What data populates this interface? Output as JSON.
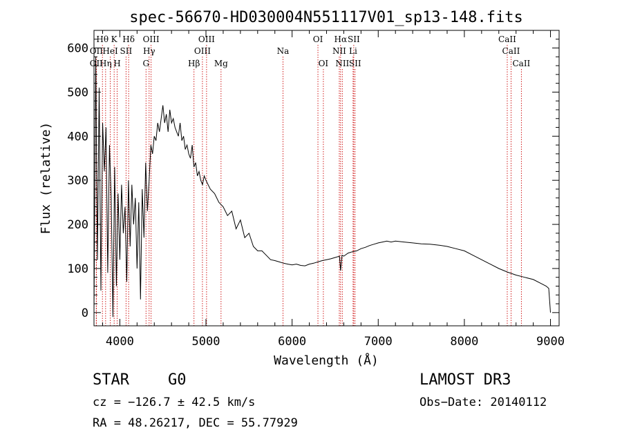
{
  "chart_data": {
    "type": "line",
    "title": "spec-56670-HD030004N551117V01_sp13-148.fits",
    "xlabel": "Wavelength (Å)",
    "ylabel": "Flux (relative)",
    "xlim": [
      3700,
      9100
    ],
    "ylim": [
      -30,
      640
    ],
    "xticks": [
      4000,
      5000,
      6000,
      7000,
      8000,
      9000
    ],
    "yticks": [
      0,
      100,
      200,
      300,
      400,
      500,
      600
    ],
    "spectrum": {
      "x": [
        3700,
        3720,
        3740,
        3760,
        3780,
        3800,
        3820,
        3840,
        3860,
        3880,
        3900,
        3920,
        3940,
        3960,
        3980,
        4000,
        4020,
        4040,
        4060,
        4080,
        4100,
        4120,
        4140,
        4160,
        4180,
        4200,
        4220,
        4240,
        4260,
        4280,
        4300,
        4320,
        4340,
        4360,
        4380,
        4400,
        4420,
        4440,
        4460,
        4480,
        4500,
        4520,
        4540,
        4560,
        4580,
        4600,
        4620,
        4640,
        4660,
        4680,
        4700,
        4720,
        4740,
        4760,
        4780,
        4800,
        4820,
        4840,
        4860,
        4880,
        4900,
        4920,
        4940,
        4960,
        4980,
        5000,
        5050,
        5100,
        5150,
        5200,
        5250,
        5300,
        5350,
        5400,
        5450,
        5500,
        5550,
        5600,
        5650,
        5700,
        5750,
        5800,
        5850,
        5900,
        5950,
        6000,
        6050,
        6100,
        6150,
        6200,
        6250,
        6300,
        6350,
        6400,
        6450,
        6500,
        6550,
        6563,
        6580,
        6600,
        6650,
        6700,
        6750,
        6800,
        6850,
        6900,
        6950,
        7000,
        7050,
        7100,
        7150,
        7200,
        7300,
        7400,
        7500,
        7600,
        7700,
        7800,
        7900,
        8000,
        8100,
        8200,
        8300,
        8400,
        8500,
        8600,
        8700,
        8800,
        8900,
        8950,
        8980,
        9000
      ],
      "y": [
        0,
        580,
        120,
        510,
        50,
        430,
        320,
        420,
        90,
        380,
        260,
        -10,
        330,
        60,
        270,
        120,
        290,
        180,
        240,
        70,
        300,
        150,
        290,
        200,
        260,
        100,
        250,
        30,
        280,
        170,
        340,
        230,
        300,
        380,
        360,
        400,
        390,
        430,
        410,
        440,
        470,
        430,
        450,
        410,
        460,
        430,
        440,
        420,
        410,
        400,
        430,
        390,
        400,
        370,
        380,
        360,
        350,
        380,
        330,
        340,
        310,
        320,
        300,
        290,
        310,
        300,
        280,
        270,
        250,
        240,
        220,
        230,
        190,
        210,
        170,
        180,
        150,
        140,
        140,
        130,
        120,
        118,
        115,
        112,
        110,
        108,
        110,
        107,
        106,
        110,
        112,
        115,
        118,
        120,
        122,
        125,
        128,
        95,
        130,
        128,
        135,
        138,
        140,
        145,
        148,
        152,
        155,
        158,
        160,
        162,
        160,
        162,
        160,
        158,
        156,
        155,
        153,
        150,
        145,
        140,
        130,
        120,
        110,
        100,
        92,
        85,
        80,
        75,
        65,
        60,
        55,
        0
      ]
    },
    "line_annotations": [
      {
        "name": "OII",
        "wavelength": 3727,
        "row": 3
      },
      {
        "name": "OII",
        "wavelength": 3727,
        "row": 2
      },
      {
        "name": "Hθ",
        "wavelength": 3798,
        "row": 1
      },
      {
        "name": "Hη",
        "wavelength": 3835,
        "row": 3
      },
      {
        "name": "HeI",
        "wavelength": 3889,
        "row": 2
      },
      {
        "name": "K",
        "wavelength": 3934,
        "row": 1
      },
      {
        "name": "H",
        "wavelength": 3969,
        "row": 3
      },
      {
        "name": "SII",
        "wavelength": 4072,
        "row": 2
      },
      {
        "name": "Hδ",
        "wavelength": 4102,
        "row": 1
      },
      {
        "name": "G",
        "wavelength": 4304,
        "row": 3
      },
      {
        "name": "Hγ",
        "wavelength": 4340,
        "row": 2
      },
      {
        "name": "OIII",
        "wavelength": 4363,
        "row": 1
      },
      {
        "name": "Hβ",
        "wavelength": 4861,
        "row": 3
      },
      {
        "name": "OIII",
        "wavelength": 4959,
        "row": 2
      },
      {
        "name": "OIII",
        "wavelength": 5007,
        "row": 1
      },
      {
        "name": "Mg",
        "wavelength": 5175,
        "row": 3
      },
      {
        "name": "Na",
        "wavelength": 5894,
        "row": 2
      },
      {
        "name": "OI",
        "wavelength": 6300,
        "row": 1
      },
      {
        "name": "OI",
        "wavelength": 6363,
        "row": 3
      },
      {
        "name": "NII",
        "wavelength": 6548,
        "row": 2
      },
      {
        "name": "Hα",
        "wavelength": 6563,
        "row": 1
      },
      {
        "name": "NII",
        "wavelength": 6583,
        "row": 3
      },
      {
        "name": "SII",
        "wavelength": 6716,
        "row": 1
      },
      {
        "name": "SII",
        "wavelength": 6731,
        "row": 3
      },
      {
        "name": "Li",
        "wavelength": 6708,
        "row": 2
      },
      {
        "name": "CaII",
        "wavelength": 8498,
        "row": 1
      },
      {
        "name": "CaII",
        "wavelength": 8542,
        "row": 2
      },
      {
        "name": "CaII",
        "wavelength": 8662,
        "row": 3
      }
    ],
    "line_color": "#000000",
    "marker_color": "#cc0000"
  },
  "info": {
    "object_type": "STAR",
    "subclass": "G0",
    "survey": "LAMOST DR3",
    "cz": "cz = −126.7 ± 42.5 km/s",
    "obs_date": "Obs−Date: 20140112",
    "coords": "RA =  48.26217, DEC =  55.77929"
  }
}
